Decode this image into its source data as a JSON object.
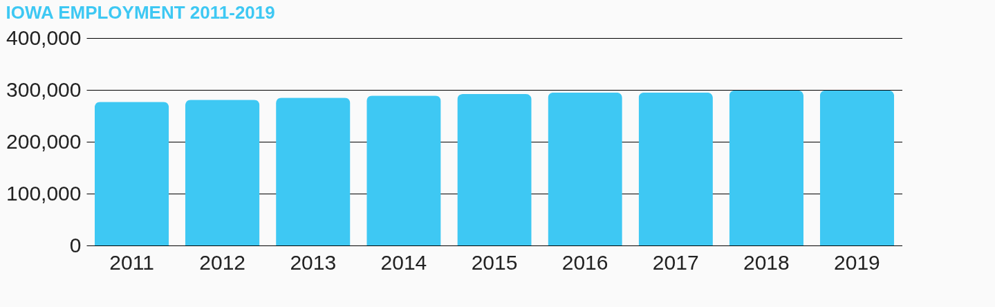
{
  "chart_data": {
    "type": "bar",
    "title": "IOWA EMPLOYMENT 2011-2019",
    "categories": [
      "2011",
      "2012",
      "2013",
      "2014",
      "2015",
      "2016",
      "2017",
      "2018",
      "2019"
    ],
    "values": [
      277000,
      281000,
      285000,
      289000,
      292000,
      295000,
      295000,
      299000,
      299000
    ],
    "color": "#3ec8f3",
    "ylim": [
      0,
      400000
    ],
    "yticks": [
      0,
      {
        "value": 100000,
        "label": "100,000"
      },
      {
        "value": 200000,
        "label": "200,000"
      },
      {
        "value": 300000,
        "label": "300,000"
      },
      {
        "value": 400000,
        "label": "400,000"
      }
    ],
    "grid": "y"
  }
}
